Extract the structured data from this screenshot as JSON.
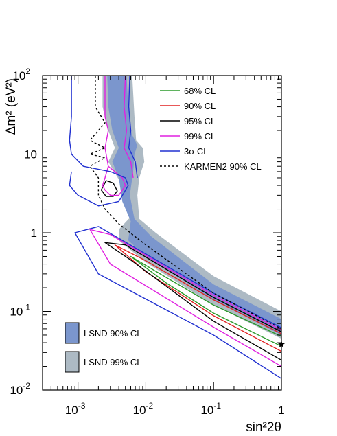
{
  "chart_data": {
    "type": "line",
    "x_scale": "log",
    "y_scale": "log",
    "xlim": [
      0.0003,
      1.0
    ],
    "ylim": [
      0.01,
      100
    ],
    "xlabel": "sin²2θ",
    "ylabel": "Δm² (eV²)",
    "x_ticks": [
      {
        "value": 0.001,
        "base": "10",
        "exp": "-3"
      },
      {
        "value": 0.01,
        "base": "10",
        "exp": "-2"
      },
      {
        "value": 0.1,
        "base": "10",
        "exp": "-1"
      },
      {
        "value": 1,
        "base": "1",
        "exp": ""
      }
    ],
    "y_ticks": [
      {
        "value": 0.01,
        "base": "10",
        "exp": "-2"
      },
      {
        "value": 0.1,
        "base": "10",
        "exp": "-1"
      },
      {
        "value": 1,
        "base": "1",
        "exp": ""
      },
      {
        "value": 10,
        "base": "10",
        "exp": ""
      },
      {
        "value": 100,
        "base": "10",
        "exp": "2"
      }
    ],
    "legend_position": "top-right",
    "legend": [
      {
        "label": "68% CL",
        "color": "#2a9a2a",
        "style": "solid"
      },
      {
        "label": "90% CL",
        "color": "#e02020",
        "style": "solid"
      },
      {
        "label": "95% CL",
        "color": "#000000",
        "style": "solid"
      },
      {
        "label": "99% CL",
        "color": "#e020e0",
        "style": "solid"
      },
      {
        "label": "3σ CL",
        "color": "#2030d0",
        "style": "solid"
      },
      {
        "label": "KARMEN2 90% CL",
        "color": "#000000",
        "style": "dotted"
      }
    ],
    "band_legend": [
      {
        "label": "LSND 90% CL",
        "color": "#7b96cd"
      },
      {
        "label": "LSND 99% CL",
        "color": "#adbac4"
      }
    ],
    "best_fit_marker": {
      "symbol": "star",
      "x": 1.0,
      "y": 0.038
    },
    "series": [
      {
        "name": "68% CL",
        "color": "#2a9a2a",
        "style": "solid",
        "closed": true,
        "upper": [
          [
            0.006,
            0.5
          ],
          [
            0.02,
            0.27
          ],
          [
            0.1,
            0.12
          ],
          [
            1.0,
            0.048
          ]
        ],
        "lower": [
          [
            0.006,
            0.5
          ],
          [
            0.02,
            0.23
          ],
          [
            0.1,
            0.095
          ],
          [
            1.0,
            0.036
          ]
        ]
      },
      {
        "name": "90% CL",
        "color": "#e02020",
        "style": "solid",
        "closed": true,
        "upper": [
          [
            0.0035,
            0.7
          ],
          [
            0.01,
            0.44
          ],
          [
            0.1,
            0.14
          ],
          [
            1.0,
            0.052
          ]
        ],
        "lower": [
          [
            0.0035,
            0.7
          ],
          [
            0.01,
            0.32
          ],
          [
            0.1,
            0.088
          ],
          [
            1.0,
            0.031
          ]
        ]
      },
      {
        "name": "95% CL (left contour)",
        "color": "#000000",
        "style": "solid",
        "closed": true,
        "upper": [
          [
            0.0022,
            3.5
          ],
          [
            0.0026,
            4.6
          ],
          [
            0.0033,
            4.3
          ],
          [
            0.0038,
            3.4
          ]
        ],
        "lower": [
          [
            0.0022,
            3.5
          ],
          [
            0.0026,
            2.9
          ],
          [
            0.0033,
            2.9
          ],
          [
            0.0038,
            3.4
          ]
        ]
      },
      {
        "name": "95% CL",
        "color": "#000000",
        "style": "solid",
        "closed": true,
        "upper": [
          [
            0.0025,
            0.75
          ],
          [
            0.005,
            0.7
          ],
          [
            0.1,
            0.15
          ],
          [
            1.0,
            0.055
          ]
        ],
        "lower": [
          [
            0.0025,
            0.75
          ],
          [
            0.006,
            0.45
          ],
          [
            0.1,
            0.075
          ],
          [
            1.0,
            0.024
          ]
        ]
      },
      {
        "name": "99% CL",
        "color": "#e020e0",
        "style": "solid",
        "closed": false,
        "points": [
          [
            0.0025,
            100
          ],
          [
            0.0025,
            30
          ],
          [
            0.0028,
            20
          ],
          [
            0.0025,
            12
          ],
          [
            0.0028,
            7
          ],
          [
            0.0045,
            5
          ],
          [
            0.005,
            4
          ],
          [
            0.004,
            3
          ],
          [
            0.003,
            3
          ],
          [
            0.0025,
            3.5
          ],
          [
            0.0023,
            4
          ],
          [
            0.0025,
            5
          ],
          [
            0.0028,
            7
          ]
        ]
      },
      {
        "name": "99% CL (lower lobe)",
        "color": "#e020e0",
        "style": "solid",
        "closed": true,
        "upper": [
          [
            0.0015,
            1.1
          ],
          [
            0.003,
            0.95
          ],
          [
            0.1,
            0.16
          ],
          [
            1.0,
            0.058
          ]
        ],
        "lower": [
          [
            0.0015,
            1.1
          ],
          [
            0.003,
            0.4
          ],
          [
            0.1,
            0.063
          ],
          [
            1.0,
            0.02
          ]
        ]
      },
      {
        "name": "99% CL (upper branch)",
        "color": "#e020e0",
        "style": "solid",
        "closed": false,
        "points": [
          [
            0.005,
            100
          ],
          [
            0.0048,
            40
          ],
          [
            0.0052,
            20
          ],
          [
            0.0048,
            12
          ],
          [
            0.006,
            8
          ],
          [
            0.0065,
            5
          ]
        ]
      },
      {
        "name": "3σ CL",
        "color": "#2030d0",
        "style": "solid",
        "closed": false,
        "points": [
          [
            0.0008,
            100
          ],
          [
            0.0008,
            30
          ],
          [
            0.00075,
            15
          ],
          [
            0.0008,
            10
          ],
          [
            0.0012,
            7
          ],
          [
            0.003,
            6
          ],
          [
            0.005,
            5
          ],
          [
            0.0055,
            4
          ],
          [
            0.004,
            2.5
          ],
          [
            0.002,
            2.2
          ],
          [
            0.001,
            3
          ],
          [
            0.00075,
            4
          ],
          [
            0.0008,
            6
          ]
        ]
      },
      {
        "name": "3σ CL (upper branch)",
        "color": "#2030d0",
        "style": "solid",
        "closed": false,
        "points": [
          [
            0.0058,
            100
          ],
          [
            0.0056,
            40
          ],
          [
            0.006,
            20
          ],
          [
            0.0056,
            12
          ],
          [
            0.007,
            8
          ],
          [
            0.0075,
            5
          ]
        ]
      },
      {
        "name": "3σ CL (lower lobe)",
        "color": "#2030d0",
        "style": "solid",
        "closed": true,
        "upper": [
          [
            0.0009,
            1.0
          ],
          [
            0.002,
            1.2
          ],
          [
            0.1,
            0.17
          ],
          [
            1.0,
            0.062
          ]
        ],
        "lower": [
          [
            0.0009,
            1.0
          ],
          [
            0.002,
            0.3
          ],
          [
            0.1,
            0.05
          ],
          [
            1.0,
            0.014
          ]
        ]
      },
      {
        "name": "KARMEN2 90% CL",
        "color": "#000000",
        "style": "dotted",
        "closed": false,
        "points": [
          [
            0.0018,
            100
          ],
          [
            0.0018,
            40
          ],
          [
            0.0025,
            25
          ],
          [
            0.0015,
            15
          ],
          [
            0.0025,
            12
          ],
          [
            0.0015,
            10
          ],
          [
            0.0025,
            9
          ],
          [
            0.0015,
            7
          ],
          [
            0.002,
            5
          ],
          [
            0.002,
            3
          ],
          [
            0.0025,
            2
          ],
          [
            0.004,
            1.3
          ],
          [
            0.01,
            0.7
          ],
          [
            0.1,
            0.17
          ],
          [
            1.0,
            0.06
          ]
        ]
      }
    ],
    "bands": [
      {
        "name": "LSND 99% CL",
        "color": "#adbac4",
        "polygon": [
          [
            0.0023,
            100
          ],
          [
            0.0063,
            100
          ],
          [
            0.0068,
            30
          ],
          [
            0.0072,
            15
          ],
          [
            0.009,
            12
          ],
          [
            0.0095,
            8
          ],
          [
            0.008,
            5
          ],
          [
            0.0075,
            3
          ],
          [
            0.008,
            1.5
          ],
          [
            0.014,
            1.0
          ],
          [
            0.1,
            0.28
          ],
          [
            1.0,
            0.1
          ],
          [
            1.0,
            0.045
          ],
          [
            0.1,
            0.12
          ],
          [
            0.01,
            0.42
          ],
          [
            0.004,
            0.8
          ],
          [
            0.004,
            1.1
          ],
          [
            0.006,
            1.6
          ],
          [
            0.005,
            2.5
          ],
          [
            0.0045,
            4
          ],
          [
            0.0028,
            8
          ],
          [
            0.0035,
            12
          ],
          [
            0.0028,
            20
          ],
          [
            0.0023,
            40
          ]
        ]
      },
      {
        "name": "LSND 90% CL",
        "color": "#7b96cd",
        "polygon": [
          [
            0.0027,
            100
          ],
          [
            0.0052,
            100
          ],
          [
            0.0055,
            40
          ],
          [
            0.0062,
            18
          ],
          [
            0.0075,
            13
          ],
          [
            0.0068,
            10
          ],
          [
            0.0065,
            6
          ],
          [
            0.0058,
            3
          ],
          [
            0.0068,
            1.5
          ],
          [
            0.012,
            0.9
          ],
          [
            0.1,
            0.22
          ],
          [
            1.0,
            0.08
          ],
          [
            1.0,
            0.05
          ],
          [
            0.1,
            0.14
          ],
          [
            0.01,
            0.5
          ],
          [
            0.0055,
            0.8
          ],
          [
            0.006,
            1.4
          ],
          [
            0.0045,
            2.5
          ],
          [
            0.004,
            5
          ],
          [
            0.0032,
            8
          ],
          [
            0.004,
            12
          ],
          [
            0.0032,
            20
          ],
          [
            0.0028,
            40
          ]
        ]
      }
    ]
  }
}
